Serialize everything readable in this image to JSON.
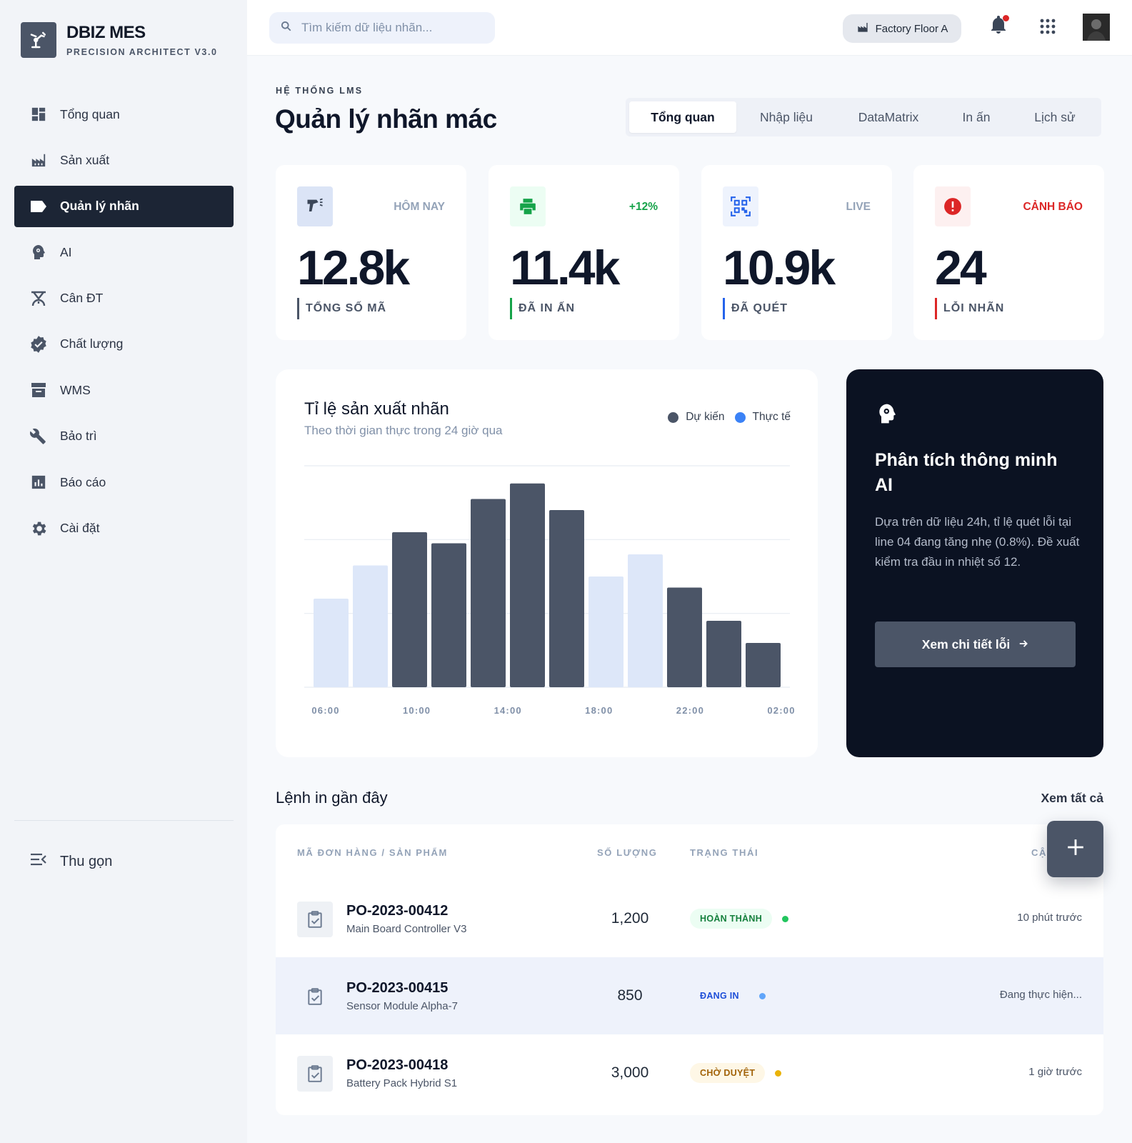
{
  "brand": {
    "title": "DBIZ MES",
    "subtitle": "PRECISION ARCHITECT V3.0",
    "logo_icon": "robot-arm-icon"
  },
  "sidebar": {
    "items": [
      {
        "label": "Tổng quan",
        "icon": "dashboard-icon",
        "active": false
      },
      {
        "label": "Sản xuất",
        "icon": "factory-icon",
        "active": false
      },
      {
        "label": "Quản lý nhãn",
        "icon": "label-icon",
        "active": true
      },
      {
        "label": "AI",
        "icon": "ai-head-icon",
        "active": false
      },
      {
        "label": "Cân ĐT",
        "icon": "scale-icon",
        "active": false
      },
      {
        "label": "Chất lượng",
        "icon": "verified-badge-icon",
        "active": false
      },
      {
        "label": "WMS",
        "icon": "archive-box-icon",
        "active": false
      },
      {
        "label": "Bảo trì",
        "icon": "wrench-icon",
        "active": false
      },
      {
        "label": "Báo cáo",
        "icon": "report-chart-icon",
        "active": false
      },
      {
        "label": "Cài đặt",
        "icon": "gear-icon",
        "active": false
      }
    ],
    "collapse_label": "Thu gọn"
  },
  "topbar": {
    "search_placeholder": "Tìm kiếm dữ liệu nhãn...",
    "factory": "Factory Floor A"
  },
  "header": {
    "eyebrow": "HỆ THỐNG LMS",
    "title": "Quản lý nhãn mác"
  },
  "tabs": [
    {
      "label": "Tổng quan",
      "active": true
    },
    {
      "label": "Nhập liệu",
      "active": false
    },
    {
      "label": "DataMatrix",
      "active": false
    },
    {
      "label": "In ấn",
      "active": false
    },
    {
      "label": "Lịch sử",
      "active": false
    }
  ],
  "stats": [
    {
      "tag": "HÔM NAY",
      "value": "12.8k",
      "label": "TỔNG SỐ MÃ",
      "icon": "barcode-scanner-icon",
      "color": "#94a3b8",
      "icon_bg": "#dbe4f6",
      "icon_color": "#3b4658"
    },
    {
      "tag": "+12%",
      "value": "11.4k",
      "label": "ĐÃ IN ẤN",
      "icon": "printer-icon",
      "color": "#16a34a",
      "icon_bg": "#ecfdf3",
      "icon_color": "#16a34a"
    },
    {
      "tag": "LIVE",
      "value": "10.9k",
      "label": "ĐÃ QUÉT",
      "icon": "qr-scan-icon",
      "color": "#94a3b8",
      "icon_bg": "#eef3fd",
      "icon_color": "#2563eb"
    },
    {
      "tag": "CẢNH BÁO",
      "value": "24",
      "label": "LỖI NHÃN",
      "icon": "error-alert-icon",
      "color": "#dc2626",
      "icon_bg": "#fdf0f0",
      "icon_color": "#dc2626"
    }
  ],
  "chart_data": {
    "type": "bar",
    "title": "Tỉ lệ sản xuất nhãn",
    "subtitle": "Theo thời gian thực trong 24 giờ qua",
    "legend": [
      {
        "name": "Dự kiến",
        "color": "#4b5567"
      },
      {
        "name": "Thực tế",
        "color": "#3b82f6"
      }
    ],
    "legend_position": "top-right",
    "tick_labels": [
      "06:00",
      "10:00",
      "14:00",
      "18:00",
      "22:00",
      "02:00"
    ],
    "bars": [
      {
        "value": 40,
        "style": "light"
      },
      {
        "value": 55,
        "style": "light"
      },
      {
        "value": 70,
        "style": "dark"
      },
      {
        "value": 65,
        "style": "dark"
      },
      {
        "value": 85,
        "style": "dark"
      },
      {
        "value": 92,
        "style": "dark"
      },
      {
        "value": 80,
        "style": "dark"
      },
      {
        "value": 50,
        "style": "light"
      },
      {
        "value": 60,
        "style": "light"
      },
      {
        "value": 45,
        "style": "dark"
      },
      {
        "value": 30,
        "style": "dark"
      },
      {
        "value": 20,
        "style": "dark"
      }
    ],
    "ylim": [
      0,
      100
    ],
    "grid": true,
    "colors": {
      "dark": "#4b5567",
      "light": "#dde7f9"
    }
  },
  "ai_panel": {
    "title": "Phân tích thông minh AI",
    "body": "Dựa trên dữ liệu 24h, tỉ lệ quét lỗi tại line 04 đang tăng nhẹ (0.8%). Đề xuất kiểm tra đầu in nhiệt số 12.",
    "button": "Xem chi tiết lỗi"
  },
  "recent": {
    "title": "Lệnh in gần đây",
    "see_all": "Xem tất cả",
    "columns": [
      "MÃ ĐƠN HÀNG / SẢN PHẨM",
      "SỐ LƯỢNG",
      "TRẠNG THÁI",
      "CẬ"
    ],
    "rows": [
      {
        "po": "PO-2023-00412",
        "product": "Main Board Controller V3",
        "qty": "1,200",
        "status": "HOÀN THÀNH",
        "badge_bg": "#ecfdf3",
        "badge_color": "#15803d",
        "dot": "#22c55e",
        "time": "10 phút trước",
        "highlight": false
      },
      {
        "po": "PO-2023-00415",
        "product": "Sensor Module Alpha-7",
        "qty": "850",
        "status": "ĐANG IN",
        "badge_bg": "#eef2fb",
        "badge_color": "#1d4ed8",
        "dot": "#60a5fa",
        "time": "Đang thực hiện...",
        "highlight": true
      },
      {
        "po": "PO-2023-00418",
        "product": "Battery Pack Hybrid S1",
        "qty": "3,000",
        "status": "CHỜ DUYỆT",
        "badge_bg": "#fef7e6",
        "badge_color": "#a16207",
        "dot": "#eab308",
        "time": "1 giờ trước",
        "highlight": false
      }
    ]
  },
  "fab_icon": "plus-icon"
}
